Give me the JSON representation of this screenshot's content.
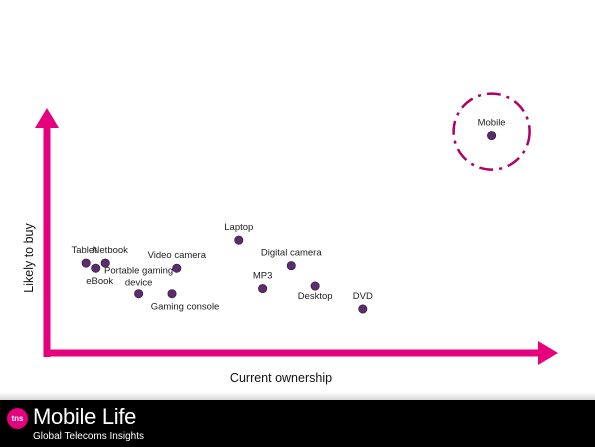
{
  "chart_data": {
    "type": "scatter",
    "xlabel": "Current ownership",
    "ylabel": "Likely to buy",
    "grid": false,
    "points": [
      {
        "label": "Mobile",
        "x": 93,
        "y": 88,
        "highlight": true
      },
      {
        "label": "Laptop",
        "x": 40,
        "y": 47
      },
      {
        "label": "Digital camera",
        "x": 51,
        "y": 37
      },
      {
        "label": "Video camera",
        "x": 27,
        "y": 36
      },
      {
        "label": "MP3",
        "x": 45,
        "y": 28
      },
      {
        "label": "Desktop",
        "x": 56,
        "y": 29
      },
      {
        "label": "DVD",
        "x": 66,
        "y": 20
      },
      {
        "label": "Tablet",
        "x": 8,
        "y": 38
      },
      {
        "label": "Netbook",
        "x": 12,
        "y": 38
      },
      {
        "label": "eBook",
        "x": 10,
        "y": 36
      },
      {
        "label": "Portable gaming device",
        "x": 19,
        "y": 26
      },
      {
        "label": "Gaming console",
        "x": 26,
        "y": 26
      }
    ]
  },
  "footer": {
    "badge": "tns",
    "title": "Mobile Life",
    "subtitle": "Global Telecoms Insights"
  },
  "colors": {
    "axis": "#e6007e",
    "point": "#5a2d6f",
    "footer_bg": "#000000"
  }
}
